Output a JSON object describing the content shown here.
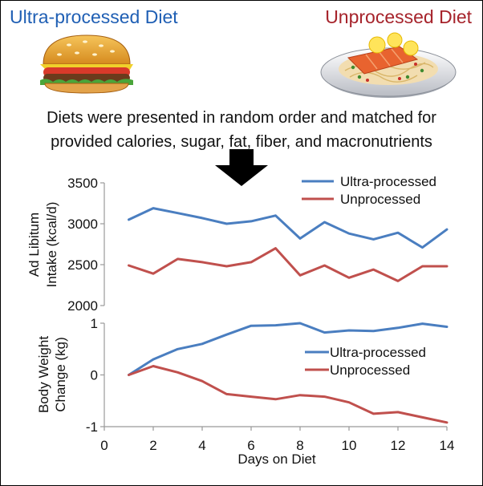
{
  "header": {
    "left_title": "Ultra-processed Diet",
    "right_title": "Unprocessed Diet",
    "caption_line1": "Diets were presented in random order and matched for",
    "caption_line2": "provided calories, sugar, fat, fiber, and macronutrients"
  },
  "icons": {
    "left": "hamburger-icon",
    "right": "salmon-pasta-plate-icon",
    "arrow": "down-arrow-icon"
  },
  "colors": {
    "ultra": "#4a7ec0",
    "unprocessed": "#c0504d",
    "title_blue": "#1f5fb4",
    "title_red": "#a6232b"
  },
  "chart_data": [
    {
      "type": "line",
      "title": "",
      "xlabel": "",
      "ylabel_line1": "Ad Libitum",
      "ylabel_line2": "Intake (kcal/d)",
      "ylim": [
        2000,
        3500
      ],
      "yticks": [
        2000,
        2500,
        3000,
        3500
      ],
      "x": [
        1,
        2,
        3,
        4,
        5,
        6,
        7,
        8,
        9,
        10,
        11,
        12,
        13,
        14
      ],
      "legend_position": "top-right",
      "series": [
        {
          "name": "Ultra-processed",
          "color": "#4a7ec0",
          "values": [
            3050,
            3190,
            3130,
            3070,
            3000,
            3030,
            3100,
            2820,
            3020,
            2880,
            2810,
            2890,
            2710,
            2930
          ]
        },
        {
          "name": "Unprocessed",
          "color": "#c0504d",
          "values": [
            2490,
            2390,
            2570,
            2530,
            2480,
            2530,
            2700,
            2370,
            2490,
            2340,
            2440,
            2300,
            2480,
            2480
          ]
        }
      ]
    },
    {
      "type": "line",
      "title": "",
      "xlabel": "Days on Diet",
      "ylabel_line1": "Body Weight",
      "ylabel_line2": "Change (kg)",
      "xlim": [
        0,
        14
      ],
      "xticks": [
        0,
        2,
        4,
        6,
        8,
        10,
        12,
        14
      ],
      "ylim": [
        -1,
        1
      ],
      "yticks": [
        -1,
        0,
        1
      ],
      "x": [
        1,
        2,
        3,
        4,
        5,
        6,
        7,
        8,
        9,
        10,
        11,
        12,
        13,
        14
      ],
      "legend_position": "center-right",
      "series": [
        {
          "name": "Ultra-processed",
          "color": "#4a7ec0",
          "values": [
            0.0,
            0.3,
            0.5,
            0.6,
            0.78,
            0.95,
            0.96,
            1.0,
            0.82,
            0.86,
            0.85,
            0.91,
            0.99,
            0.93
          ]
        },
        {
          "name": "Unprocessed",
          "color": "#c0504d",
          "values": [
            0.0,
            0.17,
            0.05,
            -0.12,
            -0.37,
            -0.42,
            -0.47,
            -0.39,
            -0.42,
            -0.53,
            -0.75,
            -0.72,
            -0.82,
            -0.92
          ]
        }
      ]
    }
  ]
}
